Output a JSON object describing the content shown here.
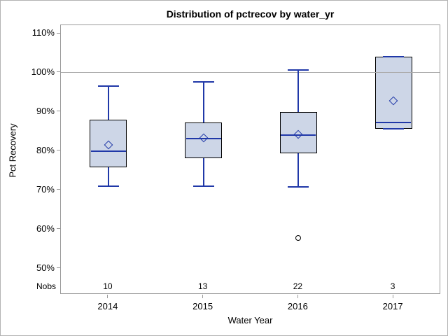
{
  "title": "Distribution of pctrecov by water_yr",
  "colors": {
    "box_fill": "#cdd6e7",
    "box_border": "#000000",
    "whisker_blue": "#2038a8",
    "reference_line": "#aaaaaa",
    "frame_gray": "#9a9a9a",
    "outlier_black": "#000000",
    "text": "#000000",
    "background": "#ffffff"
  },
  "chart_data": {
    "type": "boxplot",
    "title": "Distribution of pctrecov by water_yr",
    "xlabel": "Water Year",
    "ylabel": "Pct Recovery",
    "ylim": [
      50,
      110
    ],
    "grid": "off",
    "legend": "none",
    "reference_line": 100,
    "nobs_label": "Nobs",
    "y_ticks": [
      {
        "label": "110%",
        "value": 110
      },
      {
        "label": "100%",
        "value": 100
      },
      {
        "label": "90%",
        "value": 90
      },
      {
        "label": "80%",
        "value": 80
      },
      {
        "label": "70%",
        "value": 70
      },
      {
        "label": "60%",
        "value": 60
      },
      {
        "label": "50%",
        "value": 50
      }
    ],
    "categories": [
      "2014",
      "2015",
      "2016",
      "2017"
    ],
    "series": [
      {
        "category": "2014",
        "nobs": "10",
        "min": 71.1,
        "q1": 75.9,
        "median": 80.0,
        "mean": 81.6,
        "q3": 88.0,
        "max": 96.5,
        "outliers": []
      },
      {
        "category": "2015",
        "nobs": "13",
        "min": 71.1,
        "q1": 78.2,
        "median": 83.1,
        "mean": 83.3,
        "q3": 87.2,
        "max": 97.7,
        "outliers": []
      },
      {
        "category": "2016",
        "nobs": "22",
        "min": 70.8,
        "q1": 79.4,
        "median": 84.0,
        "mean": 84.2,
        "q3": 90.0,
        "max": 100.7,
        "outliers": [
          57.8
        ]
      },
      {
        "category": "2017",
        "nobs": "3",
        "min": 85.7,
        "q1": 85.7,
        "median": 87.2,
        "mean": 92.9,
        "q3": 104.1,
        "max": 104.1,
        "outliers": []
      }
    ]
  }
}
